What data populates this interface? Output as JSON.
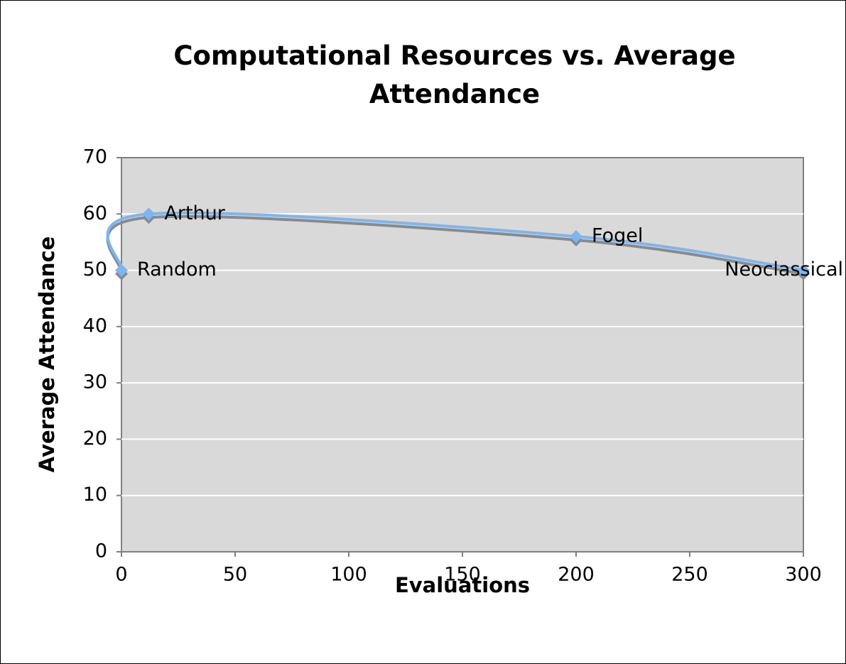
{
  "chart_data": {
    "type": "line",
    "title": "Computational Resources vs. Average Attendance",
    "x_label": "Evaluations",
    "y_label": "Average Attendance",
    "x": [
      0,
      12,
      200,
      300
    ],
    "values": [
      50,
      60,
      56,
      50
    ],
    "point_labels": [
      "Random",
      "Arthur",
      "Fogel",
      "Neoclassical"
    ],
    "color": "#7db5f0",
    "smooth": true,
    "xlim": [
      0,
      300
    ],
    "xticks": [
      0,
      50,
      100,
      150,
      200,
      250,
      300
    ],
    "ylim": [
      0,
      70
    ],
    "yticks": [
      0,
      10,
      20,
      30,
      40,
      50,
      60,
      70
    ],
    "grid": true
  }
}
